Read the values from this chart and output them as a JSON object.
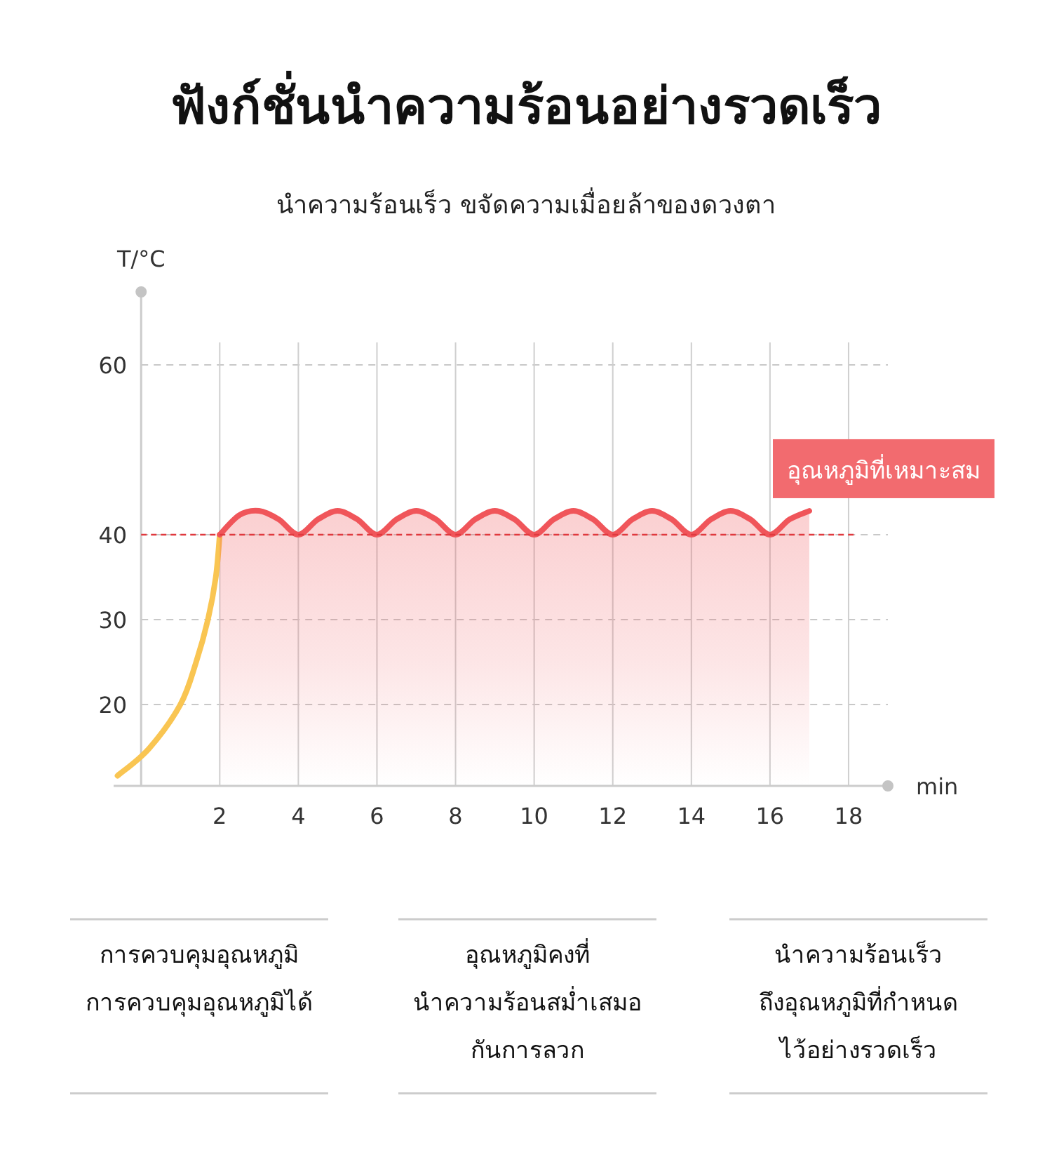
{
  "chart_data": {
    "type": "line",
    "title": "ฟังก์ชั่นนำความร้อนอย่างรวดเร็ว",
    "subtitle": "นำความร้อนเร็ว ขจัดความเมื่อยล้าของดวงตา",
    "xlabel": "min",
    "ylabel": "T/°C",
    "xlim": [
      -0.7,
      19
    ],
    "ylim": [
      10.4,
      68.6
    ],
    "xticks": [
      2,
      4,
      6,
      8,
      10,
      12,
      14,
      16,
      18
    ],
    "yticks": [
      20,
      30,
      40,
      60
    ],
    "grid": true,
    "series": [
      {
        "type": "line",
        "color": "#f9c552",
        "x": [
          -0.6,
          0.2,
          1,
          1.4,
          1.7,
          1.9,
          2
        ],
        "values": [
          11.6,
          14.8,
          20,
          25,
          30,
          35,
          40
        ]
      },
      {
        "type": "area",
        "color": "#f0555a",
        "x": [
          2,
          2.5,
          3,
          3.5,
          4,
          4.5,
          5,
          5.5,
          6,
          6.5,
          7,
          7.5,
          8,
          8.5,
          9,
          9.5,
          10,
          10.5,
          11,
          11.5,
          12,
          12.5,
          13,
          13.5,
          14,
          14.5,
          15,
          15.5,
          16,
          16.5,
          17
        ],
        "values": [
          40,
          42.3,
          42.8,
          41.8,
          40,
          41.8,
          42.8,
          41.8,
          40,
          41.8,
          42.8,
          41.8,
          40,
          41.8,
          42.8,
          41.8,
          40,
          41.8,
          42.8,
          41.8,
          40,
          41.8,
          42.8,
          41.8,
          40,
          41.8,
          42.8,
          41.8,
          40,
          41.8,
          42.8
        ]
      }
    ],
    "ref_lines": [
      {
        "axis": "y",
        "value": 40,
        "label": "อุณหภูมิที่เหมาะสม",
        "color": "#e0393e",
        "line_style": "dashed"
      }
    ],
    "annotations": [
      "การควบคุมอุณหภูมิ\nการควบคุมอุณหภูมิได้",
      "อุณหภูมิคงที่\nนำความร้อนสม่ำเสมอ\nกันการลวก",
      "นำความร้อนเร็ว\nถึงอุณหภูมิที่กำหนด\nไว้อย่างรวดเร็ว"
    ]
  }
}
